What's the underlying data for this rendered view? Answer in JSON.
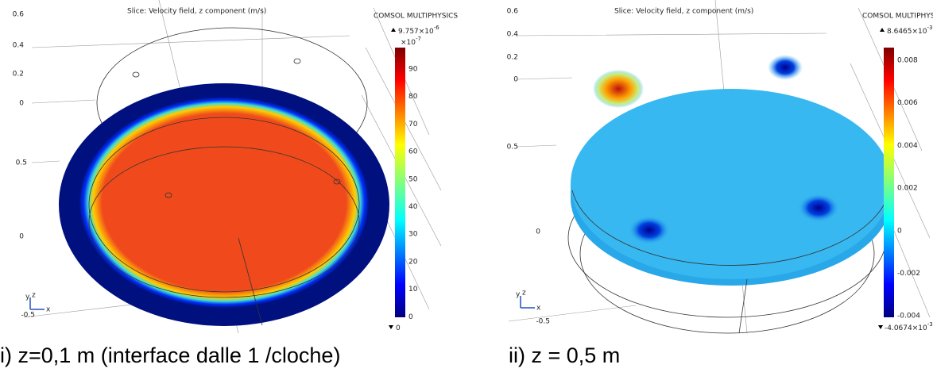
{
  "panels": [
    {
      "title": "Slice: Velocity field, z component (m/s)",
      "logo": "COMSOL MULTIPHYSICS",
      "axis_labels": [
        "0.6",
        "0.4",
        "0.2",
        "0",
        "0.5",
        "0",
        "-0.5"
      ],
      "triad": [
        "y",
        "z",
        "x"
      ],
      "colorbar": {
        "max_label": "9.757×10",
        "max_exponent": "-6",
        "multiplier": "×10",
        "multiplier_exponent": "-7",
        "ticks": [
          "90",
          "80",
          "70",
          "60",
          "50",
          "40",
          "30",
          "20",
          "10",
          "0"
        ],
        "min_label": "0"
      },
      "caption": "i) z=0,1 m (interface dalle 1 /cloche)"
    },
    {
      "title": "Slice: Velocity field, z component (m/s)",
      "logo": "COMSOL MULTIPHYSICS",
      "axis_labels": [
        "0.6",
        "0.4",
        "0.2",
        "0",
        "0.5",
        "0",
        "-0.5"
      ],
      "triad": [
        "y",
        "z",
        "x"
      ],
      "colorbar": {
        "max_label": "8.6465×10",
        "max_exponent": "-3",
        "ticks": [
          "0.008",
          "0.006",
          "0.004",
          "0.002",
          "0",
          "-0.002",
          "-0.004"
        ],
        "min_label": "-4.0674×10",
        "min_exponent": "-3"
      },
      "caption": "ii)  z = 0,5 m"
    }
  ]
}
